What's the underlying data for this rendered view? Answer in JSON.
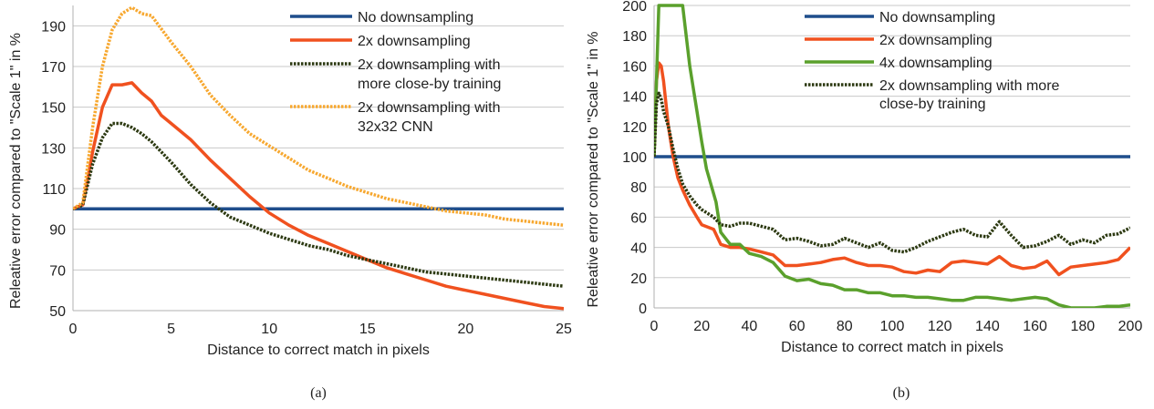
{
  "chart_data": [
    {
      "type": "line",
      "caption": "(a)",
      "xlabel": "Distance to correct match in pixels",
      "ylabel": "Releative error compared to \"Scale 1\" in %",
      "xlim": [
        0,
        25
      ],
      "ylim": [
        50,
        200
      ],
      "xticks": [
        0,
        5,
        10,
        15,
        20,
        25
      ],
      "yticks": [
        50,
        70,
        90,
        110,
        130,
        150,
        170,
        190
      ],
      "grid": true,
      "legend_position": "top-right",
      "series": [
        {
          "name": "No downsampling",
          "color": "#1f4e8c",
          "style": "solid",
          "x": [
            0,
            25
          ],
          "y": [
            100,
            100
          ]
        },
        {
          "name": "2x downsampling",
          "color": "#f0511f",
          "style": "solid",
          "x": [
            0,
            0.5,
            1,
            1.5,
            2,
            2.5,
            3,
            3.5,
            4,
            4.5,
            5,
            6,
            7,
            8,
            9,
            10,
            11,
            12,
            13,
            14,
            15,
            16,
            17,
            18,
            19,
            20,
            21,
            22,
            23,
            24,
            25
          ],
          "y": [
            100,
            102,
            128,
            150,
            161,
            161,
            162,
            157,
            153,
            146,
            142,
            134,
            124,
            115,
            106,
            98,
            92,
            87,
            83,
            79,
            75,
            71,
            68,
            65,
            62,
            60,
            58,
            56,
            54,
            52,
            51
          ]
        },
        {
          "name": "2x downsampling with more close-by training",
          "color": "#2d3a12",
          "style": "dotted",
          "x": [
            0,
            0.5,
            1,
            1.5,
            2,
            2.5,
            3,
            3.5,
            4,
            5,
            6,
            7,
            8,
            9,
            10,
            11,
            12,
            13,
            14,
            15,
            16,
            17,
            18,
            19,
            20,
            21,
            22,
            23,
            24,
            25
          ],
          "y": [
            100,
            102,
            122,
            135,
            142,
            142,
            140,
            137,
            133,
            123,
            112,
            103,
            96,
            92,
            88,
            85,
            82,
            80,
            77,
            75,
            73,
            71,
            69,
            68,
            67,
            66,
            65,
            64,
            63,
            62
          ]
        },
        {
          "name": "2x downsampling with 32x32 CNN",
          "color": "#f7a830",
          "style": "dotted",
          "x": [
            0,
            0.5,
            1,
            1.5,
            2,
            2.5,
            3,
            3.5,
            4,
            5,
            6,
            7,
            8,
            9,
            10,
            11,
            12,
            13,
            14,
            15,
            16,
            17,
            18,
            19,
            20,
            21,
            22,
            23,
            24,
            25
          ],
          "y": [
            100,
            103,
            140,
            170,
            188,
            196,
            199,
            196,
            195,
            182,
            170,
            156,
            146,
            137,
            131,
            125,
            119,
            115,
            111,
            108,
            105,
            103,
            101,
            99,
            98,
            97,
            95,
            94,
            93,
            92
          ]
        }
      ]
    },
    {
      "type": "line",
      "caption": "(b)",
      "xlabel": "Distance to correct match in pixels",
      "ylabel": "Releative error compared to \"Scale 1\" in %",
      "xlim": [
        0,
        200
      ],
      "ylim": [
        0,
        200
      ],
      "xticks": [
        0,
        20,
        40,
        60,
        80,
        100,
        120,
        140,
        160,
        180,
        200
      ],
      "yticks": [
        0,
        20,
        40,
        60,
        80,
        100,
        120,
        140,
        160,
        180,
        200
      ],
      "grid": true,
      "legend_position": "top-right",
      "series": [
        {
          "name": "No downsampling",
          "color": "#1f4e8c",
          "style": "solid",
          "x": [
            0,
            200
          ],
          "y": [
            100,
            100
          ]
        },
        {
          "name": "2x downsampling",
          "color": "#f0511f",
          "style": "solid",
          "x": [
            0,
            1,
            2,
            3,
            4,
            6,
            8,
            10,
            12,
            15,
            18,
            20,
            25,
            28,
            32,
            36,
            40,
            45,
            50,
            55,
            60,
            65,
            70,
            75,
            80,
            85,
            90,
            95,
            100,
            105,
            110,
            115,
            120,
            125,
            130,
            135,
            140,
            145,
            150,
            155,
            160,
            165,
            170,
            175,
            180,
            185,
            190,
            195,
            200
          ],
          "y": [
            100,
            150,
            162,
            160,
            150,
            120,
            100,
            86,
            78,
            68,
            60,
            55,
            52,
            42,
            40,
            40,
            39,
            37,
            35,
            28,
            28,
            29,
            30,
            32,
            33,
            30,
            28,
            28,
            27,
            24,
            23,
            25,
            24,
            30,
            31,
            30,
            29,
            34,
            28,
            26,
            27,
            31,
            22,
            27,
            28,
            29,
            30,
            32,
            40
          ]
        },
        {
          "name": "4x downsampling",
          "color": "#5aa02c",
          "style": "solid",
          "x": [
            0,
            2,
            5,
            8,
            12,
            15,
            18,
            20,
            22,
            26,
            28,
            32,
            36,
            40,
            45,
            50,
            55,
            60,
            65,
            70,
            75,
            80,
            85,
            90,
            95,
            100,
            105,
            110,
            115,
            120,
            125,
            130,
            135,
            140,
            145,
            150,
            155,
            160,
            165,
            170,
            175,
            180,
            185,
            190,
            195,
            200
          ],
          "y": [
            100,
            200,
            200,
            200,
            200,
            160,
            130,
            110,
            92,
            70,
            50,
            42,
            42,
            36,
            34,
            30,
            21,
            18,
            19,
            16,
            15,
            12,
            12,
            10,
            10,
            8,
            8,
            7,
            7,
            6,
            5,
            5,
            7,
            7,
            6,
            5,
            6,
            7,
            6,
            2,
            0,
            0,
            0,
            1,
            1,
            2
          ]
        },
        {
          "name": "2x downsampling with more close-by training",
          "color": "#2d3a12",
          "style": "dotted",
          "x": [
            0,
            1,
            2,
            3,
            4,
            6,
            8,
            10,
            12,
            15,
            18,
            20,
            25,
            28,
            32,
            36,
            40,
            45,
            50,
            55,
            60,
            65,
            70,
            75,
            80,
            85,
            90,
            95,
            100,
            105,
            110,
            115,
            120,
            125,
            130,
            135,
            140,
            145,
            150,
            155,
            160,
            165,
            170,
            175,
            180,
            185,
            190,
            195,
            200
          ],
          "y": [
            100,
            135,
            142,
            138,
            130,
            120,
            105,
            92,
            82,
            74,
            68,
            65,
            60,
            55,
            54,
            56,
            56,
            54,
            52,
            45,
            46,
            44,
            41,
            42,
            46,
            43,
            40,
            43,
            38,
            37,
            40,
            44,
            47,
            50,
            52,
            48,
            47,
            57,
            48,
            40,
            41,
            44,
            48,
            42,
            45,
            43,
            48,
            49,
            53
          ]
        }
      ]
    }
  ]
}
